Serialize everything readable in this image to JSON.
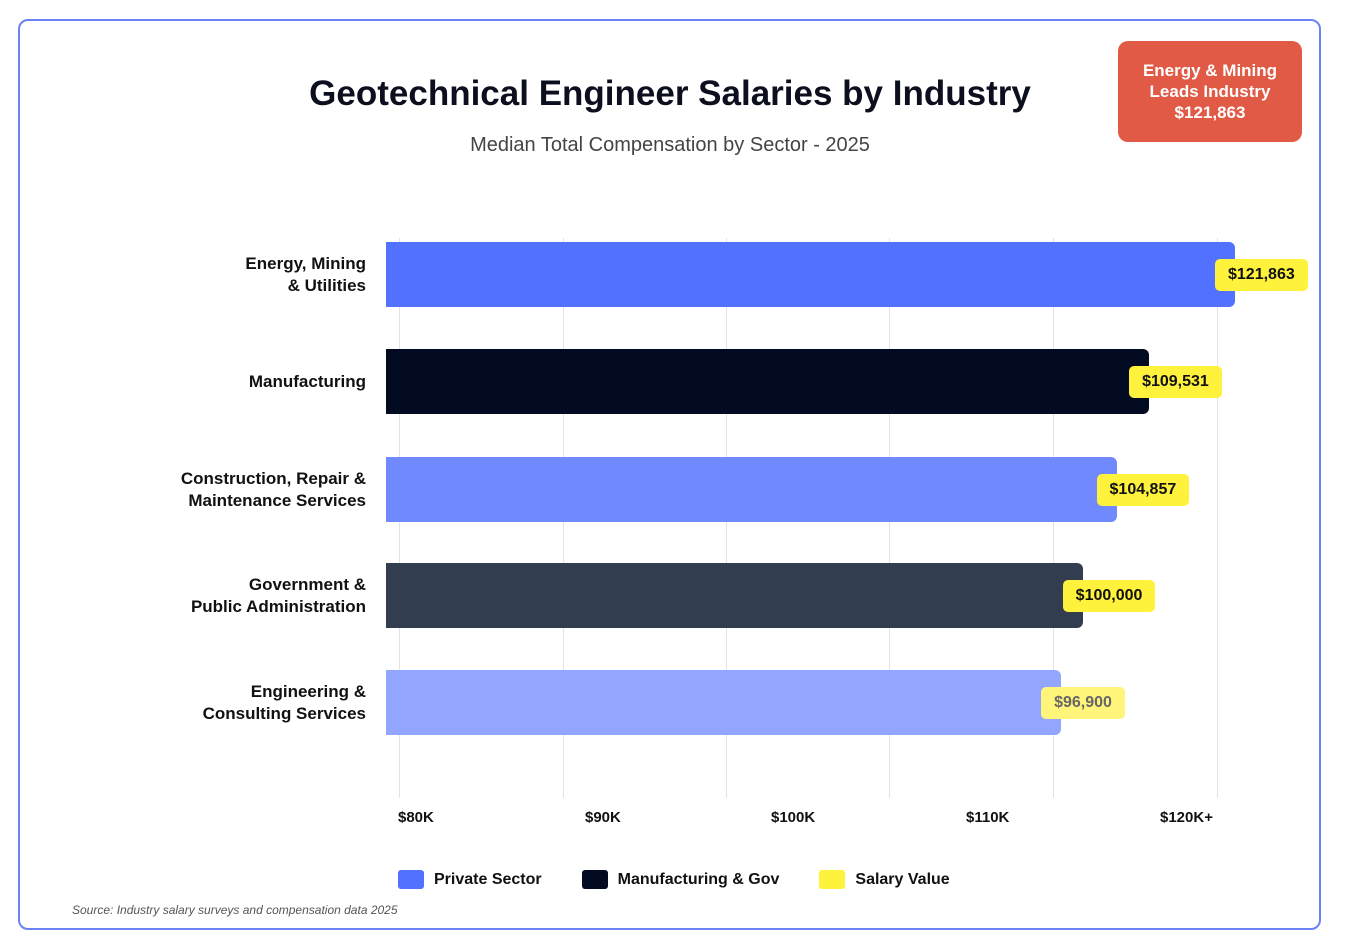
{
  "chart_data": {
    "type": "bar",
    "orientation": "horizontal",
    "title": "Geotechnical Engineer Salaries by Industry",
    "subtitle": "Median Total Compensation by Sector - 2025",
    "categories": [
      [
        "Energy, Mining",
        "& Utilities"
      ],
      [
        "Manufacturing"
      ],
      [
        "Construction, Repair &",
        "Maintenance Services"
      ],
      [
        "Government &",
        "Public Administration"
      ],
      [
        "Engineering &",
        "Consulting Services"
      ]
    ],
    "values": [
      121863,
      109531,
      104857,
      100000,
      96900
    ],
    "value_labels": [
      "$121,863",
      "$109,531",
      "$104,857",
      "$100,000",
      "$96,900"
    ],
    "bar_colors": [
      "#5271ff",
      "#020b22",
      "#7089ff",
      "#333d50",
      "#93a6ff"
    ],
    "x_tick_labels": [
      "$80K",
      "$90K",
      "$100K",
      "$110K",
      "$120K+"
    ],
    "grid": true,
    "legend": {
      "placement": "bottom",
      "items": [
        {
          "label": "Private Sector",
          "color": "#5271ff"
        },
        {
          "label": "Manufacturing & Gov",
          "color": "#020b22"
        },
        {
          "label": "Salary Value",
          "color": "#fff23c"
        }
      ]
    },
    "callout": [
      "Energy & Mining",
      "Leads Industry",
      "$121,863"
    ],
    "callout_color": "#e05a45",
    "source": "Source: Industry salary surveys and compensation data 2025"
  }
}
